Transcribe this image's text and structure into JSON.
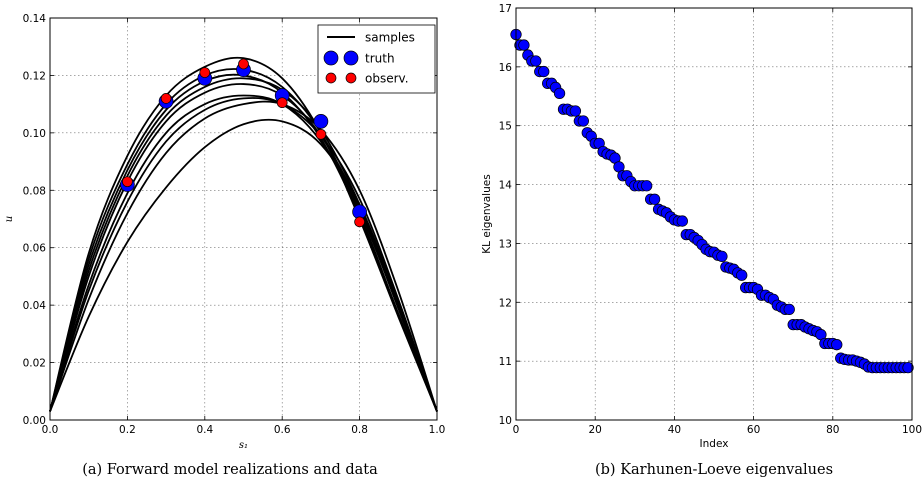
{
  "chart_data": [
    {
      "type": "line",
      "caption": "(a) Forward model realizations and data",
      "xlabel": "s₁",
      "ylabel": "u",
      "xlim": [
        0.0,
        1.0
      ],
      "ylim": [
        0.0,
        0.14
      ],
      "xticks": [
        "0.0",
        "0.2",
        "0.4",
        "0.6",
        "0.8",
        "1.0"
      ],
      "yticks": [
        "0.00",
        "0.02",
        "0.04",
        "0.06",
        "0.08",
        "0.10",
        "0.12",
        "0.14"
      ],
      "grid": true,
      "legend": {
        "placement": "top-right",
        "entries": [
          "samples",
          "truth",
          "observ."
        ]
      },
      "samples": [
        {
          "x": [
            0,
            0.1,
            0.2,
            0.3,
            0.4,
            0.5,
            0.6,
            0.7,
            0.8,
            0.9,
            1.0
          ],
          "y": [
            0.003,
            0.058,
            0.092,
            0.113,
            0.123,
            0.126,
            0.119,
            0.1,
            0.07,
            0.036,
            0.003
          ]
        },
        {
          "x": [
            0,
            0.1,
            0.2,
            0.3,
            0.4,
            0.5,
            0.6,
            0.7,
            0.8,
            0.9,
            1.0
          ],
          "y": [
            0.003,
            0.054,
            0.087,
            0.108,
            0.118,
            0.12,
            0.114,
            0.098,
            0.071,
            0.037,
            0.003
          ]
        },
        {
          "x": [
            0,
            0.1,
            0.2,
            0.3,
            0.4,
            0.5,
            0.6,
            0.7,
            0.8,
            0.9,
            1.0
          ],
          "y": [
            0.003,
            0.052,
            0.085,
            0.106,
            0.116,
            0.119,
            0.115,
            0.101,
            0.075,
            0.04,
            0.003
          ]
        },
        {
          "x": [
            0,
            0.1,
            0.2,
            0.3,
            0.4,
            0.5,
            0.6,
            0.7,
            0.8,
            0.9,
            1.0
          ],
          "y": [
            0.003,
            0.05,
            0.083,
            0.104,
            0.114,
            0.117,
            0.113,
            0.099,
            0.074,
            0.039,
            0.003
          ]
        },
        {
          "x": [
            0,
            0.1,
            0.2,
            0.3,
            0.4,
            0.5,
            0.6,
            0.7,
            0.8,
            0.9,
            1.0
          ],
          "y": [
            0.003,
            0.047,
            0.079,
            0.1,
            0.11,
            0.113,
            0.11,
            0.097,
            0.073,
            0.039,
            0.003
          ]
        },
        {
          "x": [
            0,
            0.1,
            0.2,
            0.3,
            0.4,
            0.5,
            0.6,
            0.7,
            0.8,
            0.9,
            1.0
          ],
          "y": [
            0.003,
            0.045,
            0.076,
            0.097,
            0.108,
            0.112,
            0.11,
            0.099,
            0.077,
            0.042,
            0.003
          ]
        },
        {
          "x": [
            0,
            0.1,
            0.2,
            0.3,
            0.4,
            0.5,
            0.6,
            0.7,
            0.8,
            0.9,
            1.0
          ],
          "y": [
            0.003,
            0.042,
            0.072,
            0.093,
            0.105,
            0.11,
            0.11,
            0.101,
            0.08,
            0.045,
            0.003
          ]
        },
        {
          "x": [
            0,
            0.1,
            0.2,
            0.3,
            0.4,
            0.5,
            0.6,
            0.7,
            0.8,
            0.9,
            1.0
          ],
          "y": [
            0.003,
            0.036,
            0.062,
            0.081,
            0.095,
            0.103,
            0.104,
            0.096,
            0.075,
            0.041,
            0.003
          ]
        },
        {
          "x": [
            0,
            0.1,
            0.2,
            0.3,
            0.4,
            0.5,
            0.6,
            0.7,
            0.8,
            0.9,
            1.0
          ],
          "y": [
            0.003,
            0.056,
            0.089,
            0.11,
            0.12,
            0.122,
            0.116,
            0.1,
            0.072,
            0.037,
            0.003
          ]
        }
      ],
      "truth": {
        "x": [
          0.2,
          0.3,
          0.4,
          0.5,
          0.6,
          0.7,
          0.8
        ],
        "y": [
          0.082,
          0.111,
          0.119,
          0.122,
          0.113,
          0.104,
          0.0725
        ]
      },
      "observ": {
        "x": [
          0.2,
          0.3,
          0.4,
          0.5,
          0.6,
          0.7,
          0.8
        ],
        "y": [
          0.083,
          0.112,
          0.121,
          0.124,
          0.1105,
          0.0995,
          0.069
        ]
      },
      "colors": {
        "samples": "#000000",
        "truth": "#0000ff",
        "observ": "#ff0000"
      }
    },
    {
      "type": "scatter",
      "caption": "(b) Karhunen-Loeve eigenvalues",
      "xlabel": "Index",
      "ylabel": "KL eigenvalues",
      "xlim": [
        0,
        100
      ],
      "ylim": [
        10,
        17
      ],
      "xticks": [
        "0",
        "20",
        "40",
        "60",
        "80",
        "100"
      ],
      "yticks": [
        "10",
        "11",
        "12",
        "13",
        "14",
        "15",
        "16",
        "17"
      ],
      "grid": true,
      "x": [
        0,
        1,
        2,
        3,
        4,
        5,
        6,
        7,
        8,
        9,
        10,
        11,
        12,
        13,
        14,
        15,
        16,
        17,
        18,
        19,
        20,
        21,
        22,
        23,
        24,
        25,
        26,
        27,
        28,
        29,
        30,
        31,
        32,
        33,
        34,
        35,
        36,
        37,
        38,
        39,
        40,
        41,
        42,
        43,
        44,
        45,
        46,
        47,
        48,
        49,
        50,
        51,
        52,
        53,
        54,
        55,
        56,
        57,
        58,
        59,
        60,
        61,
        62,
        63,
        64,
        65,
        66,
        67,
        68,
        69,
        70,
        71,
        72,
        73,
        74,
        75,
        76,
        77,
        78,
        79,
        80,
        81,
        82,
        83,
        84,
        85,
        86,
        87,
        88,
        89,
        90,
        91,
        92,
        93,
        94,
        95,
        96,
        97,
        98,
        99
      ],
      "y": [
        16.55,
        16.37,
        16.37,
        16.2,
        16.1,
        16.1,
        15.92,
        15.92,
        15.72,
        15.72,
        15.65,
        15.55,
        15.28,
        15.28,
        15.25,
        15.25,
        15.08,
        15.08,
        14.88,
        14.82,
        14.7,
        14.7,
        14.56,
        14.52,
        14.5,
        14.45,
        14.3,
        14.15,
        14.15,
        14.05,
        13.98,
        13.98,
        13.98,
        13.98,
        13.75,
        13.75,
        13.58,
        13.55,
        13.52,
        13.45,
        13.4,
        13.38,
        13.38,
        13.15,
        13.15,
        13.1,
        13.05,
        12.98,
        12.9,
        12.86,
        12.85,
        12.8,
        12.78,
        12.6,
        12.58,
        12.56,
        12.5,
        12.46,
        12.25,
        12.25,
        12.25,
        12.22,
        12.12,
        12.12,
        12.08,
        12.05,
        11.95,
        11.92,
        11.88,
        11.88,
        11.62,
        11.62,
        11.62,
        11.58,
        11.55,
        11.52,
        11.5,
        11.45,
        11.3,
        11.3,
        11.3,
        11.28,
        11.05,
        11.03,
        11.02,
        11.02,
        11.0,
        10.98,
        10.95,
        10.9,
        10.89,
        10.89,
        10.89,
        10.89,
        10.89,
        10.89,
        10.89,
        10.89,
        10.89,
        10.89
      ],
      "colors": {
        "markers": "#0000ff"
      }
    }
  ]
}
